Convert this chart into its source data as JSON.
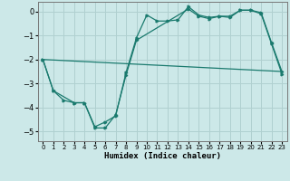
{
  "xlabel": "Humidex (Indice chaleur)",
  "background_color": "#cce8e8",
  "grid_color": "#b0d0d0",
  "line_color": "#1a7a6e",
  "xlim": [
    -0.5,
    23.5
  ],
  "ylim": [
    -5.4,
    0.4
  ],
  "yticks": [
    0,
    -1,
    -2,
    -3,
    -4,
    -5
  ],
  "xticks": [
    0,
    1,
    2,
    3,
    4,
    5,
    6,
    7,
    8,
    9,
    10,
    11,
    12,
    13,
    14,
    15,
    16,
    17,
    18,
    19,
    20,
    21,
    22,
    23
  ],
  "line1_x": [
    0,
    1,
    2,
    3,
    4,
    5,
    6,
    7,
    8,
    9,
    10,
    11,
    12,
    13,
    14,
    15,
    16,
    17,
    18,
    19,
    20,
    21,
    22,
    23
  ],
  "line1_y": [
    -2.0,
    -3.3,
    -3.7,
    -3.8,
    -3.8,
    -4.8,
    -4.6,
    -4.35,
    -2.55,
    -1.1,
    -0.15,
    -0.4,
    -0.4,
    -0.35,
    0.2,
    -0.15,
    -0.25,
    -0.2,
    -0.2,
    0.05,
    0.05,
    -0.05,
    -1.3,
    -2.5
  ],
  "line2_x": [
    0,
    1,
    3,
    4,
    5,
    6,
    7,
    8,
    9,
    14,
    15,
    16,
    17,
    18,
    19,
    20,
    21,
    22,
    23
  ],
  "line2_y": [
    -2.0,
    -3.3,
    -3.8,
    -3.8,
    -4.85,
    -4.85,
    -4.3,
    -2.65,
    -1.2,
    0.1,
    -0.2,
    -0.3,
    -0.2,
    -0.25,
    0.05,
    0.05,
    -0.1,
    -1.35,
    -2.6
  ],
  "line3_x": [
    0,
    23
  ],
  "line3_y": [
    -2.0,
    -2.5
  ]
}
